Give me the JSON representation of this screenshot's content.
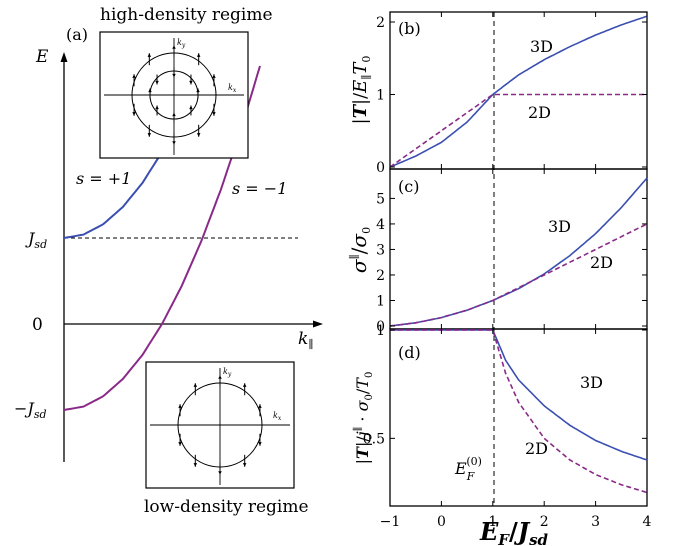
{
  "colors": {
    "upper_band": "#3a4fb0",
    "lower_band": "#8a2a88",
    "axis": "#000000",
    "dashed": "#000000"
  },
  "chart_data": [
    {
      "id": "a",
      "type": "line",
      "panel_label": "(a)",
      "ylabel": "E",
      "xlabel": "k∥",
      "yticks": [
        "J_sd",
        "0",
        "−J_sd"
      ],
      "ytick_parts": {
        "jsd": {
          "base": "J",
          "sub": "sd"
        },
        "zero": "0",
        "mjsd": {
          "base": "−J",
          "sub": "sd"
        }
      },
      "x": [
        0,
        0.2,
        0.4,
        0.6,
        0.8,
        1.0,
        1.2,
        1.4,
        1.6,
        1.8,
        2.0
      ],
      "series": [
        {
          "name": "s = +1",
          "values": [
            1,
            1.04,
            1.16,
            1.36,
            1.64,
            2.0,
            2.44,
            2.96,
            3.56,
            4.24,
            5.0
          ]
        },
        {
          "name": "s = −1",
          "values": [
            -1,
            -0.96,
            -0.84,
            -0.64,
            -0.36,
            0.0,
            0.44,
            0.96,
            1.56,
            2.24,
            3.0
          ]
        }
      ],
      "reference_line": {
        "y": 1,
        "style": "dashed"
      },
      "insets": [
        {
          "title": "high-density regime",
          "axis_labels": [
            "k_y",
            "k_x"
          ],
          "circles": 2
        },
        {
          "title": "low-density regime",
          "axis_labels": [
            "k_y",
            "k_x"
          ],
          "circles": 1
        }
      ]
    },
    {
      "id": "b",
      "type": "line",
      "panel_label": "(b)",
      "ylabel": "|T|/E∥T0",
      "ylim": [
        0,
        2.1
      ],
      "yticks": [
        0,
        1,
        2
      ],
      "x": [
        -1,
        -0.5,
        0,
        0.5,
        1,
        1.5,
        2,
        2.5,
        3,
        3.5,
        4
      ],
      "series": [
        {
          "name": "3D",
          "values": [
            0,
            0.15,
            0.34,
            0.62,
            1.0,
            1.27,
            1.48,
            1.66,
            1.82,
            1.96,
            2.08
          ]
        },
        {
          "name": "2D",
          "values": [
            0,
            0.25,
            0.5,
            0.75,
            1.0,
            1.0,
            1.0,
            1.0,
            1.0,
            1.0,
            1.0
          ]
        }
      ],
      "vline_x": 1
    },
    {
      "id": "c",
      "type": "line",
      "panel_label": "(c)",
      "ylabel": "σ∥/σ0",
      "ylim": [
        0,
        6
      ],
      "yticks": [
        0,
        1,
        2,
        3,
        4,
        5
      ],
      "x": [
        -1,
        -0.5,
        0,
        0.5,
        1,
        1.5,
        2,
        2.5,
        3,
        3.5,
        4
      ],
      "series": [
        {
          "name": "3D",
          "values": [
            0,
            0.125,
            0.33,
            0.62,
            1.0,
            1.46,
            2.04,
            2.76,
            3.62,
            4.64,
            5.8
          ]
        },
        {
          "name": "2D",
          "values": [
            0,
            0.125,
            0.33,
            0.62,
            1.0,
            1.5,
            2.0,
            2.5,
            3.0,
            3.5,
            4.0
          ]
        }
      ],
      "vline_x": 1
    },
    {
      "id": "d",
      "type": "line",
      "panel_label": "(d)",
      "ylabel": "|T|/j∥·σ0/T0",
      "xlabel": "EF/Jsd",
      "xlim": [
        -1,
        4
      ],
      "ylim": [
        0.25,
        1.05
      ],
      "xticks": [
        -1,
        0,
        1,
        2,
        3,
        4
      ],
      "yticks": [
        0.5,
        1
      ],
      "x": [
        -1,
        0,
        1,
        1.25,
        1.5,
        2,
        2.5,
        3,
        3.5,
        4
      ],
      "series": [
        {
          "name": "3D",
          "values": [
            1,
            1,
            1,
            0.86,
            0.77,
            0.65,
            0.56,
            0.49,
            0.44,
            0.4
          ]
        },
        {
          "name": "2D",
          "values": [
            1,
            1,
            1,
            0.8,
            0.667,
            0.5,
            0.4,
            0.333,
            0.286,
            0.25
          ]
        }
      ],
      "vline_x": 1,
      "annotation": "E_F^(0)",
      "annotation_parts": {
        "base": "E",
        "sub": "F",
        "sup": "(0)"
      }
    }
  ]
}
